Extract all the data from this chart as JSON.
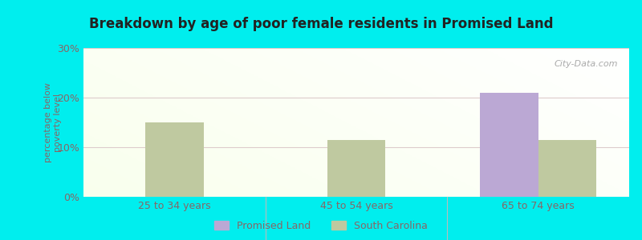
{
  "title": "Breakdown by age of poor female residents in Promised Land",
  "ylabel": "percentage below\npoverty level",
  "age_groups": [
    "25 to 34 years",
    "45 to 54 years",
    "65 to 74 years"
  ],
  "promised_land": [
    null,
    null,
    21.0
  ],
  "south_carolina": [
    15.0,
    11.5,
    11.5
  ],
  "ylim": [
    0,
    30
  ],
  "yticks": [
    0,
    10,
    20,
    30
  ],
  "ytick_labels": [
    "0%",
    "10%",
    "20%",
    "30%"
  ],
  "promised_land_color": "#bba8d4",
  "south_carolina_color": "#bfc9a0",
  "background_outer": "#00EEEE",
  "bar_width": 0.32,
  "legend_promised": "Promised Land",
  "legend_sc": "South Carolina",
  "watermark": "City-Data.com",
  "title_color": "#222222",
  "label_color": "#886666",
  "tick_color": "#886666",
  "grid_color": "#ddcccc",
  "separator_color": "#bbbbbb"
}
